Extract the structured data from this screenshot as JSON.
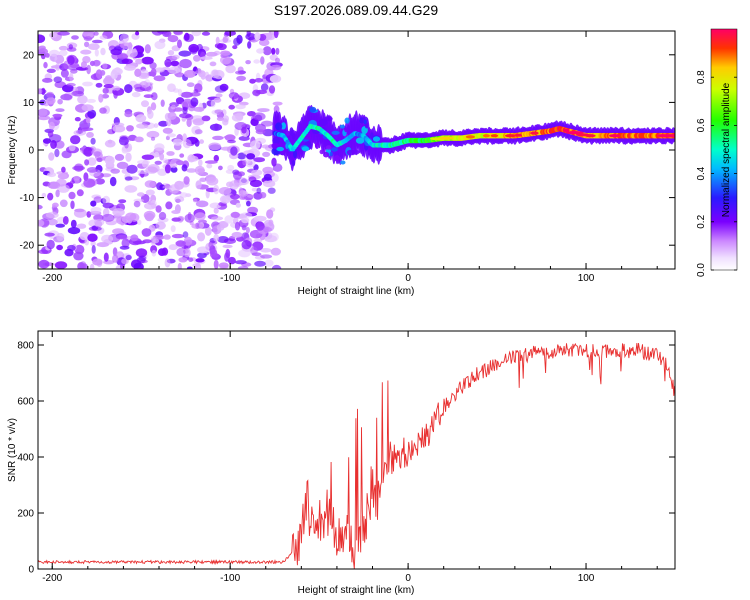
{
  "title": "S197.2026.089.09.44.G29",
  "chart_data": [
    {
      "type": "heatmap",
      "title": "S197.2026.089.09.44.G29",
      "xlabel": "Height of straight line (km)",
      "ylabel": "Frequency (Hz)",
      "xlim": [
        -208,
        150
      ],
      "ylim": [
        -25,
        25
      ],
      "xticks": [
        -200,
        -100,
        0,
        100
      ],
      "xtick_labels": [
        "-200",
        "-100",
        "0",
        "100"
      ],
      "yticks": [
        -20,
        -10,
        0,
        10,
        20
      ],
      "ytick_labels": [
        "-20",
        "-10",
        "0",
        "10",
        "20"
      ],
      "noise_region_x": [
        -208,
        -73
      ],
      "signal_trace": {
        "x": [
          -75,
          -70,
          -65,
          -60,
          -55,
          -50,
          -45,
          -40,
          -35,
          -30,
          -25,
          -20,
          -15,
          -10,
          0,
          10,
          20,
          30,
          40,
          50,
          60,
          70,
          80,
          85,
          90,
          100,
          110,
          120,
          130,
          140,
          150
        ],
        "frequency": [
          3.5,
          3.0,
          0.0,
          2.5,
          5.0,
          4.5,
          3.0,
          1.0,
          2.0,
          3.5,
          3.0,
          1.0,
          1.0,
          1.0,
          2.0,
          2.0,
          2.5,
          2.5,
          3.0,
          3.0,
          3.0,
          3.5,
          4.0,
          4.5,
          4.0,
          3.0,
          3.0,
          3.0,
          3.0,
          3.0,
          3.0
        ],
        "amplitude": [
          0.3,
          0.4,
          0.45,
          0.5,
          0.5,
          0.5,
          0.5,
          0.5,
          0.45,
          0.4,
          0.4,
          0.45,
          0.5,
          0.5,
          0.55,
          0.6,
          0.7,
          0.8,
          0.75,
          0.8,
          0.85,
          0.85,
          0.9,
          0.95,
          0.9,
          0.85,
          0.85,
          0.9,
          0.9,
          0.9,
          0.9
        ]
      },
      "colorbar": {
        "label": "Normalized spectral amplitude",
        "ticks": [
          0.0,
          0.2,
          0.4,
          0.6,
          0.8
        ],
        "tick_labels": [
          "0.0",
          "0.2",
          "0.4",
          "0.6",
          "0.8"
        ],
        "range": [
          0,
          1
        ],
        "colormap": "white-purple-blue-cyan-green-yellow-red"
      }
    },
    {
      "type": "line",
      "xlabel": "Height of straight line (km)",
      "ylabel": "SNR (10 * v/v)",
      "xlim": [
        -208,
        150
      ],
      "ylim": [
        0,
        850
      ],
      "xticks": [
        -200,
        -100,
        0,
        100
      ],
      "xtick_labels": [
        "-200",
        "-100",
        "0",
        "100"
      ],
      "yticks": [
        0,
        200,
        400,
        600,
        800
      ],
      "ytick_labels": [
        "0",
        "200",
        "400",
        "600",
        "800"
      ],
      "series": [
        {
          "name": "SNR",
          "color": "#e83030",
          "x": [
            -208,
            -150,
            -100,
            -70,
            -62,
            -58,
            -55,
            -50,
            -45,
            -40,
            -35,
            -30,
            -25,
            -20,
            -15,
            -12,
            -10,
            -5,
            0,
            5,
            10,
            15,
            20,
            25,
            30,
            40,
            50,
            60,
            70,
            80,
            90,
            100,
            110,
            120,
            130,
            140,
            145,
            150
          ],
          "values": [
            25,
            25,
            25,
            25,
            80,
            230,
            200,
            140,
            220,
            120,
            100,
            90,
            150,
            320,
            260,
            350,
            380,
            410,
            420,
            450,
            480,
            520,
            580,
            620,
            650,
            700,
            730,
            760,
            770,
            775,
            780,
            780,
            780,
            780,
            780,
            760,
            740,
            630
          ]
        }
      ]
    }
  ]
}
